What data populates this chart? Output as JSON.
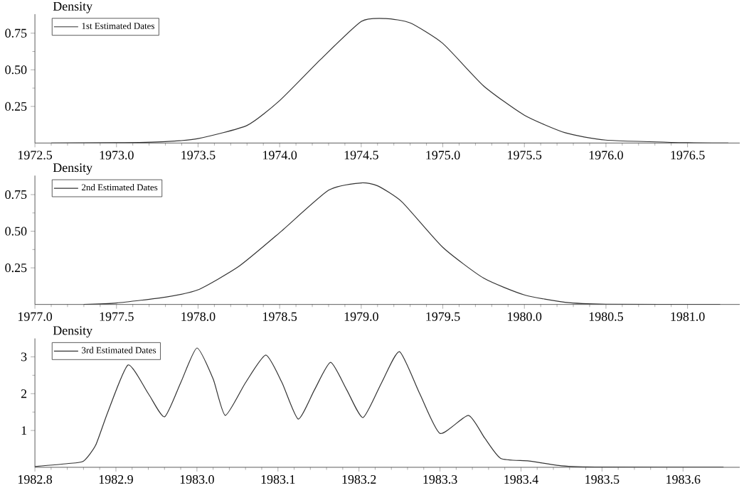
{
  "chart_data": [
    {
      "type": "line",
      "ylabel": "Density",
      "legend": "top left",
      "xlim": [
        1972.5,
        1976.82
      ],
      "ylim": [
        0,
        0.88
      ],
      "xticks": [
        1972.5,
        {
          "value": 1973,
          "label": "1973.0"
        },
        1973.5,
        {
          "value": 1974,
          "label": "1974.0"
        },
        1974.5,
        {
          "value": 1975,
          "label": "1975.0"
        },
        1975.5,
        {
          "value": 1976,
          "label": "1976.0"
        },
        1976.5
      ],
      "yticks": [
        0.25,
        {
          "value": 0.5,
          "label": "0.50"
        },
        0.75
      ],
      "series": [
        {
          "name": "1st Estimated Dates",
          "color": "#333333",
          "x": [
            1972.6,
            1973.0,
            1973.3,
            1973.5,
            1973.8,
            1974.0,
            1974.25,
            1974.5,
            1974.65,
            1974.8,
            1975.0,
            1975.25,
            1975.5,
            1975.75,
            1976.0,
            1976.5,
            1976.75
          ],
          "values": [
            0,
            0.002,
            0.01,
            0.03,
            0.12,
            0.29,
            0.57,
            0.83,
            0.85,
            0.82,
            0.68,
            0.39,
            0.19,
            0.07,
            0.02,
            0.002,
            0
          ]
        }
      ]
    },
    {
      "type": "line",
      "ylabel": "Density",
      "legend": "top left",
      "xlim": [
        1977.0,
        1981.32
      ],
      "ylim": [
        0,
        0.88
      ],
      "xticks": [
        {
          "value": 1977,
          "label": "1977.0"
        },
        1977.5,
        {
          "value": 1978,
          "label": "1978.0"
        },
        1978.5,
        {
          "value": 1979,
          "label": "1979.0"
        },
        1979.5,
        {
          "value": 1980,
          "label": "1980.0"
        },
        1980.5,
        {
          "value": 1981,
          "label": "1981.0"
        }
      ],
      "yticks": [
        0.25,
        {
          "value": 0.5,
          "label": "0.50"
        },
        0.75
      ],
      "series": [
        {
          "name": "2nd Estimated Dates",
          "color": "#333333",
          "x": [
            1977.3,
            1977.5,
            1977.8,
            1978.0,
            1978.25,
            1978.5,
            1978.8,
            1979.0,
            1979.1,
            1979.25,
            1979.5,
            1979.75,
            1980.0,
            1980.25,
            1980.5,
            1981.2
          ],
          "values": [
            0,
            0.01,
            0.05,
            0.1,
            0.26,
            0.49,
            0.78,
            0.83,
            0.81,
            0.7,
            0.39,
            0.18,
            0.065,
            0.015,
            0.002,
            0
          ]
        }
      ]
    },
    {
      "type": "line",
      "ylabel": "Density",
      "legend": "top left",
      "xlim": [
        1982.8,
        1983.67
      ],
      "ylim": [
        0,
        3.5
      ],
      "xticks": [
        1982.8,
        1982.9,
        {
          "value": 1983,
          "label": "1983.0"
        },
        1983.1,
        1983.2,
        1983.3,
        1983.4,
        1983.5,
        1983.6
      ],
      "yticks": [
        1,
        2,
        3
      ],
      "series": [
        {
          "name": "3rd Estimated Dates",
          "color": "#333333",
          "x": [
            1982.8,
            1982.84,
            1982.86,
            1982.875,
            1982.89,
            1982.915,
            1982.94,
            1982.96,
            1982.98,
            1983.0,
            1983.02,
            1983.035,
            1983.06,
            1983.085,
            1983.105,
            1983.125,
            1983.145,
            1983.165,
            1983.185,
            1983.205,
            1983.228,
            1983.25,
            1983.275,
            1983.3,
            1983.335,
            1983.355,
            1983.375,
            1983.41,
            1983.45,
            1983.5,
            1983.65
          ],
          "values": [
            0.02,
            0.1,
            0.17,
            0.6,
            1.5,
            2.78,
            2.0,
            1.37,
            2.3,
            3.24,
            2.4,
            1.41,
            2.3,
            3.05,
            2.3,
            1.31,
            2.1,
            2.85,
            2.1,
            1.35,
            2.3,
            3.14,
            2.0,
            0.92,
            1.41,
            0.8,
            0.24,
            0.17,
            0.04,
            0.005,
            0
          ]
        }
      ]
    }
  ]
}
